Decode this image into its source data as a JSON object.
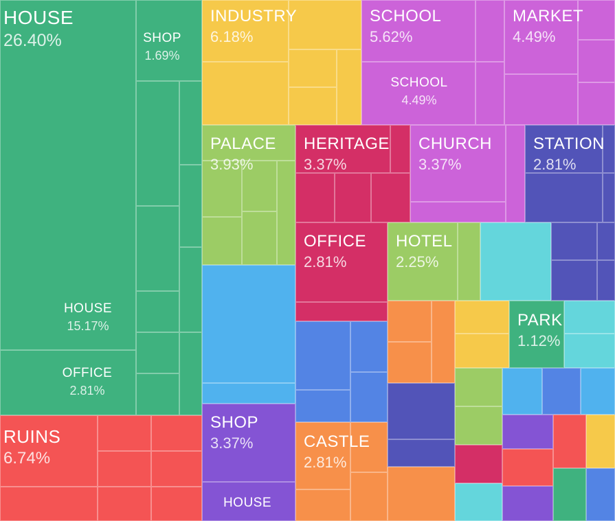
{
  "chart_data": {
    "type": "treemap",
    "colors": {
      "green": "#3fb27f",
      "red": "#f45454",
      "yellow": "#f6c94a",
      "magenta": "#cc63d9",
      "lime": "#9ccc65",
      "crimson": "#d42f66",
      "indigo": "#5254b8",
      "sky": "#50b2ee",
      "purple": "#8454d4",
      "orange": "#f7904a",
      "blue": "#5384e4",
      "cyan": "#64d6dc"
    },
    "labeled_items": [
      {
        "id": "house",
        "name": "HOUSE",
        "value": "26.40%",
        "color": "green"
      },
      {
        "id": "house-sub",
        "name": "HOUSE",
        "value": "15.17%",
        "color": "green"
      },
      {
        "id": "office-sub",
        "name": "OFFICE",
        "value": "2.81%",
        "color": "green"
      },
      {
        "id": "shop-sub",
        "name": "SHOP",
        "value": "1.69%",
        "color": "green"
      },
      {
        "id": "ruins",
        "name": "RUINS",
        "value": "6.74%",
        "color": "red"
      },
      {
        "id": "industry",
        "name": "INDUSTRY",
        "value": "6.18%",
        "color": "yellow"
      },
      {
        "id": "school",
        "name": "SCHOOL",
        "value": "5.62%",
        "color": "magenta"
      },
      {
        "id": "school-sub",
        "name": "SCHOOL",
        "value": "4.49%",
        "color": "magenta"
      },
      {
        "id": "market",
        "name": "MARKET",
        "value": "4.49%",
        "color": "magenta"
      },
      {
        "id": "palace",
        "name": "PALACE",
        "value": "3.93%",
        "color": "lime"
      },
      {
        "id": "heritage",
        "name": "HERITAGE",
        "value": "3.37%",
        "color": "crimson"
      },
      {
        "id": "church",
        "name": "CHURCH",
        "value": "3.37%",
        "color": "magenta"
      },
      {
        "id": "station",
        "name": "STATION",
        "value": "2.81%",
        "color": "indigo"
      },
      {
        "id": "office",
        "name": "OFFICE",
        "value": "2.81%",
        "color": "crimson"
      },
      {
        "id": "hotel",
        "name": "HOTEL",
        "value": "2.25%",
        "color": "lime"
      },
      {
        "id": "park",
        "name": "PARK",
        "value": "1.12%",
        "color": "green"
      },
      {
        "id": "shop",
        "name": "SHOP",
        "value": "3.37%",
        "color": "purple"
      },
      {
        "id": "castle",
        "name": "CASTLE",
        "value": "2.81%",
        "color": "orange"
      },
      {
        "id": "house-bottom",
        "name": "HOUSE",
        "value": "",
        "color": "purple"
      }
    ]
  }
}
